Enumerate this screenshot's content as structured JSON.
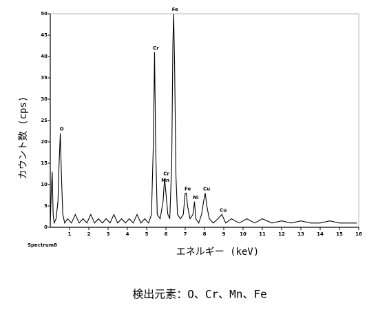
{
  "chart_data": {
    "type": "line",
    "xlabel": "エネルギー (keV)",
    "ylabel": "カウント数 (cps)",
    "spectrum_label": "Spectrum8",
    "caption": "検出元素：O、Cr、Mn、Fe",
    "xlim": [
      0,
      16
    ],
    "ylim": [
      0,
      50
    ],
    "xticks": [
      1,
      2,
      3,
      4,
      5,
      6,
      7,
      8,
      9,
      10,
      11,
      12,
      13,
      14,
      15,
      16
    ],
    "yticks": [
      0,
      5,
      10,
      15,
      20,
      25,
      30,
      35,
      40,
      45,
      50
    ],
    "grid": false,
    "x": [
      0,
      0.05,
      0.1,
      0.15,
      0.2,
      0.3,
      0.4,
      0.45,
      0.52,
      0.58,
      0.65,
      0.75,
      0.9,
      1.1,
      1.3,
      1.5,
      1.7,
      1.9,
      2.1,
      2.3,
      2.5,
      2.7,
      2.9,
      3.1,
      3.3,
      3.5,
      3.7,
      3.9,
      4.1,
      4.3,
      4.5,
      4.7,
      4.9,
      5.1,
      5.25,
      5.35,
      5.41,
      5.47,
      5.55,
      5.7,
      5.85,
      5.93,
      6.0,
      6.1,
      6.2,
      6.3,
      6.36,
      6.4,
      6.45,
      6.52,
      6.6,
      6.75,
      6.9,
      7.0,
      7.06,
      7.12,
      7.25,
      7.4,
      7.48,
      7.55,
      7.7,
      7.85,
      7.95,
      8.04,
      8.12,
      8.25,
      8.45,
      8.7,
      8.9,
      9.1,
      9.4,
      9.8,
      10.2,
      10.6,
      11,
      11.5,
      12,
      12.5,
      13,
      13.5,
      14,
      14.5,
      15,
      15.5,
      15.9
    ],
    "series": [
      {
        "color": "#000000",
        "values": [
          0.5,
          8,
          13,
          3,
          1,
          2,
          6,
          14,
          22,
          12,
          3,
          1,
          2,
          1,
          3,
          1,
          2,
          1,
          3,
          1,
          2,
          1,
          2,
          1,
          3,
          1,
          2,
          1,
          2,
          1,
          3,
          1,
          2,
          1,
          3,
          20,
          41,
          18,
          3,
          2,
          6,
          11.5,
          8,
          3,
          2,
          15,
          43,
          50,
          38,
          12,
          3,
          2,
          3,
          8,
          8,
          5,
          2,
          3,
          6,
          2,
          1,
          3,
          6,
          8,
          5,
          2,
          1,
          2,
          3,
          1,
          2,
          1,
          2,
          1,
          2,
          1,
          1.5,
          1,
          1.5,
          1,
          1,
          1.5,
          1,
          1,
          1
        ]
      }
    ],
    "annotations": [
      {
        "label": "O",
        "x": 0.52,
        "y": 22
      },
      {
        "label": "Cr",
        "x": 5.41,
        "y": 41
      },
      {
        "label": "Fe",
        "x": 6.4,
        "y": 50
      },
      {
        "label": "Cr",
        "x": 5.95,
        "y": 11.5
      },
      {
        "label": "Mn",
        "x": 5.9,
        "y": 10
      },
      {
        "label": "Fe",
        "x": 7.06,
        "y": 8
      },
      {
        "label": "Ni",
        "x": 7.48,
        "y": 6
      },
      {
        "label": "Cu",
        "x": 8.04,
        "y": 8
      },
      {
        "label": "Cu",
        "x": 8.9,
        "y": 3
      }
    ]
  }
}
